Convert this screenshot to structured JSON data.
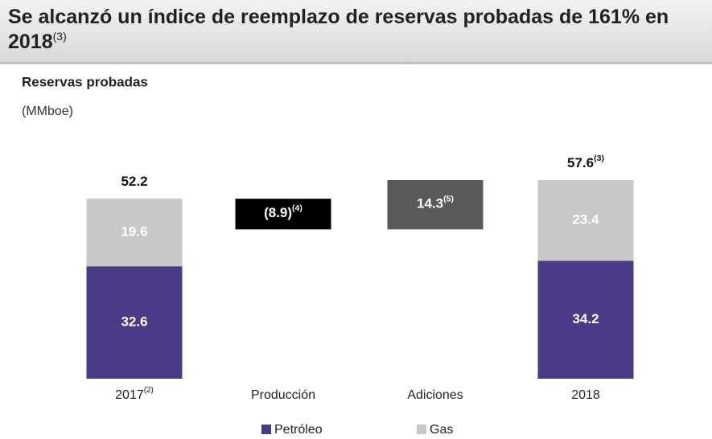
{
  "chart_data": {
    "type": "waterfall",
    "title": "Se alcanzó un índice de reemplazo de reservas probadas de 161% en 2018",
    "title_note": "(3)",
    "subtitle": "Reservas probadas",
    "unit": "(MMboe)",
    "categories": [
      "2017",
      "Producción",
      "Adiciones",
      "2018"
    ],
    "category_notes": [
      "(2)",
      null,
      null,
      null
    ],
    "series": [
      {
        "name": "Petróleo",
        "color": "#4b3a87",
        "values": [
          32.6,
          null,
          null,
          34.2
        ]
      },
      {
        "name": "Gas",
        "color": "#c8c8c8",
        "values": [
          19.6,
          null,
          null,
          23.4
        ]
      }
    ],
    "totals": {
      "values": [
        52.2,
        null,
        null,
        57.6
      ],
      "notes": [
        null,
        null,
        null,
        "(3)"
      ]
    },
    "steps": {
      "values": [
        null,
        -8.9,
        14.3,
        null
      ],
      "value_labels": [
        null,
        "(8.9)",
        null,
        null
      ],
      "notes": [
        null,
        "(4)",
        "(5)",
        null
      ],
      "colors": [
        null,
        "#000000",
        "#595959",
        null
      ]
    }
  }
}
